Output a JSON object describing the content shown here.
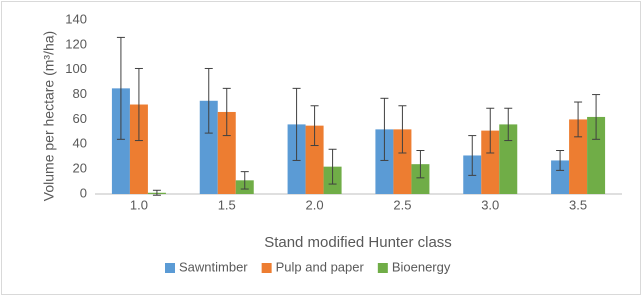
{
  "chart_data": {
    "type": "bar",
    "x_label": "Stand modified Hunter class",
    "y_label": "Volume per hectare (m³/ha)",
    "categories": [
      "1.0",
      "1.5",
      "2.0",
      "2.5",
      "3.0",
      "3.5"
    ],
    "series": [
      {
        "name": "Sawntimber",
        "color": "#5b9bd5",
        "values": [
          85,
          75,
          56,
          52,
          31,
          27
        ],
        "errors": [
          41,
          26,
          29,
          25,
          16,
          8
        ]
      },
      {
        "name": "Pulp and paper",
        "color": "#ed7d31",
        "values": [
          72,
          66,
          55,
          52,
          51,
          60
        ],
        "errors": [
          29,
          19,
          16,
          19,
          18,
          14
        ]
      },
      {
        "name": "Bioenergy",
        "color": "#70ad47",
        "values": [
          1,
          11,
          22,
          24,
          56,
          62
        ],
        "errors": [
          2,
          7,
          14,
          11,
          13,
          18
        ]
      }
    ],
    "ylim": [
      0,
      140
    ],
    "yticks": [
      0,
      20,
      40,
      60,
      80,
      100,
      120,
      140
    ],
    "grid": false,
    "legend": "bottom"
  }
}
